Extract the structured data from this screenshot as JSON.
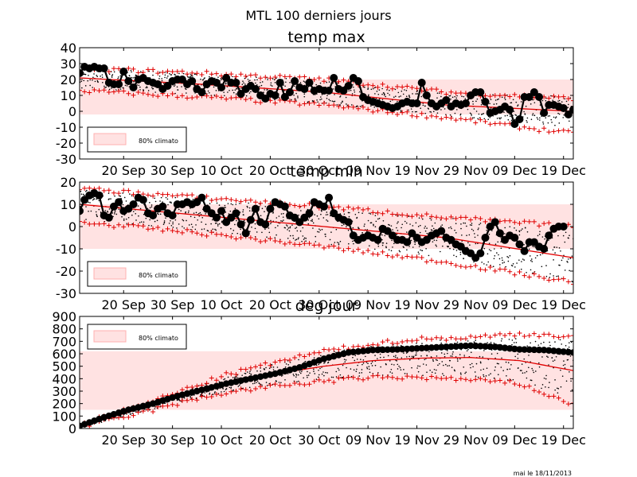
{
  "figure": {
    "title": "MTL 100 derniers jours",
    "footer": "mai le 18/11/2013"
  },
  "colors": {
    "band": "#ffe2e2",
    "band_edge": "#ffb0b0",
    "normal": "#e00000",
    "obs": "#000000",
    "members": "#000000"
  },
  "chart_data": [
    {
      "id": "tmax",
      "type": "line",
      "title": "temp max",
      "ylim": [
        -30,
        40
      ],
      "yticks": [
        -30,
        -20,
        -10,
        0,
        10,
        20,
        30,
        40
      ],
      "xticks": [
        "20 Sep",
        "30 Sep",
        "10 Oct",
        "20 Oct",
        "30 Oct",
        "09 Nov",
        "19 Nov",
        "29 Nov",
        "09 Dec",
        "19 Dec"
      ],
      "xtick_days": [
        9,
        19,
        29,
        39,
        49,
        59,
        69,
        79,
        89,
        99
      ],
      "xlim_days": [
        0,
        101
      ],
      "legend": {
        "label": "80% climato",
        "position": "lower left"
      },
      "band": [
        [
          0,
          -2,
          20
        ],
        [
          101,
          -2,
          20
        ]
      ],
      "normal": [
        [
          0,
          21
        ],
        [
          25,
          17
        ],
        [
          50,
          12
        ],
        [
          75,
          4
        ],
        [
          101,
          0
        ]
      ],
      "low": [
        [
          0,
          13
        ],
        [
          25,
          9
        ],
        [
          50,
          4
        ],
        [
          75,
          -4
        ],
        [
          101,
          -14
        ]
      ],
      "high": [
        [
          0,
          27
        ],
        [
          25,
          24
        ],
        [
          50,
          20
        ],
        [
          75,
          12
        ],
        [
          101,
          8
        ]
      ],
      "observed": [
        [
          0,
          24
        ],
        [
          1,
          28
        ],
        [
          2,
          27
        ],
        [
          3,
          28
        ],
        [
          4,
          27
        ],
        [
          5,
          27
        ],
        [
          6,
          18
        ],
        [
          7,
          17
        ],
        [
          8,
          17
        ],
        [
          9,
          25
        ],
        [
          10,
          19
        ],
        [
          11,
          15
        ],
        [
          12,
          20
        ],
        [
          13,
          21
        ],
        [
          14,
          19
        ],
        [
          15,
          18
        ],
        [
          16,
          17
        ],
        [
          17,
          14
        ],
        [
          18,
          16
        ],
        [
          19,
          19
        ],
        [
          20,
          20
        ],
        [
          21,
          20
        ],
        [
          22,
          17
        ],
        [
          23,
          19
        ],
        [
          24,
          14
        ],
        [
          25,
          12
        ],
        [
          26,
          17
        ],
        [
          27,
          19
        ],
        [
          28,
          18
        ],
        [
          29,
          15
        ],
        [
          30,
          21
        ],
        [
          31,
          18
        ],
        [
          32,
          18
        ],
        [
          33,
          11
        ],
        [
          34,
          14
        ],
        [
          35,
          16
        ],
        [
          36,
          14
        ],
        [
          37,
          10
        ],
        [
          38,
          8
        ],
        [
          39,
          11
        ],
        [
          40,
          10
        ],
        [
          41,
          18
        ],
        [
          42,
          9
        ],
        [
          43,
          12
        ],
        [
          44,
          19
        ],
        [
          45,
          15
        ],
        [
          46,
          14
        ],
        [
          47,
          18
        ],
        [
          48,
          13
        ],
        [
          49,
          14
        ],
        [
          50,
          13
        ],
        [
          51,
          13
        ],
        [
          52,
          21
        ],
        [
          53,
          14
        ],
        [
          54,
          13
        ],
        [
          55,
          16
        ],
        [
          56,
          21
        ],
        [
          57,
          19
        ],
        [
          58,
          9
        ],
        [
          59,
          7
        ],
        [
          60,
          6
        ],
        [
          61,
          5
        ],
        [
          62,
          4
        ],
        [
          63,
          3
        ],
        [
          64,
          2
        ],
        [
          65,
          3
        ],
        [
          66,
          5
        ],
        [
          67,
          6
        ],
        [
          68,
          5
        ],
        [
          69,
          5
        ],
        [
          70,
          18
        ],
        [
          71,
          10
        ],
        [
          72,
          5
        ],
        [
          73,
          3
        ],
        [
          74,
          5
        ],
        [
          75,
          7
        ],
        [
          76,
          3
        ],
        [
          77,
          5
        ],
        [
          78,
          4
        ],
        [
          79,
          5
        ],
        [
          80,
          10
        ],
        [
          81,
          12
        ],
        [
          82,
          12
        ],
        [
          83,
          6
        ],
        [
          84,
          -1
        ],
        [
          85,
          0
        ],
        [
          86,
          1
        ],
        [
          87,
          3
        ],
        [
          88,
          1
        ],
        [
          89,
          -8
        ],
        [
          90,
          -5
        ],
        [
          91,
          9
        ],
        [
          92,
          9
        ],
        [
          93,
          12
        ],
        [
          94,
          9
        ],
        [
          95,
          -1
        ],
        [
          96,
          4
        ],
        [
          97,
          4
        ],
        [
          98,
          3
        ],
        [
          99,
          2
        ],
        [
          100,
          -2
        ],
        [
          101,
          1
        ]
      ]
    },
    {
      "id": "tmin",
      "type": "line",
      "title": "temp min",
      "ylim": [
        -30,
        20
      ],
      "yticks": [
        -30,
        -20,
        -10,
        0,
        10,
        20
      ],
      "xticks": [
        "20 Sep",
        "30 Sep",
        "10 Oct",
        "20 Oct",
        "30 Oct",
        "09 Nov",
        "19 Nov",
        "29 Nov",
        "09 Dec",
        "19 Dec"
      ],
      "xtick_days": [
        9,
        19,
        29,
        39,
        49,
        59,
        69,
        79,
        89,
        99
      ],
      "xlim_days": [
        0,
        101
      ],
      "legend": {
        "label": "80% climato",
        "position": "lower left"
      },
      "band": [
        [
          0,
          -10,
          10
        ],
        [
          101,
          -10,
          10
        ]
      ],
      "normal": [
        [
          0,
          10
        ],
        [
          25,
          5
        ],
        [
          50,
          0
        ],
        [
          75,
          -5
        ],
        [
          101,
          -14
        ]
      ],
      "low": [
        [
          0,
          2
        ],
        [
          25,
          -3
        ],
        [
          50,
          -9
        ],
        [
          75,
          -16
        ],
        [
          101,
          -25
        ]
      ],
      "high": [
        [
          0,
          17
        ],
        [
          25,
          13
        ],
        [
          50,
          9
        ],
        [
          75,
          4
        ],
        [
          101,
          0
        ]
      ],
      "observed": [
        [
          0,
          7
        ],
        [
          1,
          12
        ],
        [
          2,
          14
        ],
        [
          3,
          15
        ],
        [
          4,
          14
        ],
        [
          5,
          5
        ],
        [
          6,
          4
        ],
        [
          7,
          9
        ],
        [
          8,
          11
        ],
        [
          9,
          7
        ],
        [
          10,
          8
        ],
        [
          11,
          10
        ],
        [
          12,
          13
        ],
        [
          13,
          12
        ],
        [
          14,
          6
        ],
        [
          15,
          5
        ],
        [
          16,
          8
        ],
        [
          17,
          9
        ],
        [
          18,
          6
        ],
        [
          19,
          5
        ],
        [
          20,
          10
        ],
        [
          21,
          10
        ],
        [
          22,
          11
        ],
        [
          23,
          10
        ],
        [
          24,
          11
        ],
        [
          25,
          13
        ],
        [
          26,
          8
        ],
        [
          27,
          6
        ],
        [
          28,
          4
        ],
        [
          29,
          7
        ],
        [
          30,
          2
        ],
        [
          31,
          4
        ],
        [
          32,
          6
        ],
        [
          33,
          1
        ],
        [
          34,
          -3
        ],
        [
          35,
          3
        ],
        [
          36,
          8
        ],
        [
          37,
          2
        ],
        [
          38,
          1
        ],
        [
          39,
          8
        ],
        [
          40,
          11
        ],
        [
          41,
          10
        ],
        [
          42,
          9
        ],
        [
          43,
          5
        ],
        [
          44,
          4
        ],
        [
          45,
          2
        ],
        [
          46,
          4
        ],
        [
          47,
          6
        ],
        [
          48,
          11
        ],
        [
          49,
          10
        ],
        [
          50,
          9
        ],
        [
          51,
          13
        ],
        [
          52,
          6
        ],
        [
          53,
          4
        ],
        [
          54,
          3
        ],
        [
          55,
          2
        ],
        [
          56,
          -4
        ],
        [
          57,
          -6
        ],
        [
          58,
          -5
        ],
        [
          59,
          -4
        ],
        [
          60,
          -5
        ],
        [
          61,
          -6
        ],
        [
          62,
          -1
        ],
        [
          63,
          -2
        ],
        [
          64,
          -4
        ],
        [
          65,
          -6
        ],
        [
          66,
          -6
        ],
        [
          67,
          -7
        ],
        [
          68,
          -3
        ],
        [
          69,
          -5
        ],
        [
          70,
          -7
        ],
        [
          71,
          -6
        ],
        [
          72,
          -4
        ],
        [
          73,
          -3
        ],
        [
          74,
          -2
        ],
        [
          75,
          -5
        ],
        [
          76,
          -6
        ],
        [
          77,
          -8
        ],
        [
          78,
          -9
        ],
        [
          79,
          -11
        ],
        [
          80,
          -12
        ],
        [
          81,
          -14
        ],
        [
          82,
          -12
        ],
        [
          83,
          -5
        ],
        [
          84,
          0
        ],
        [
          85,
          2
        ],
        [
          86,
          -3
        ],
        [
          87,
          -6
        ],
        [
          88,
          -4
        ],
        [
          89,
          -5
        ],
        [
          90,
          -8
        ],
        [
          91,
          -11
        ],
        [
          92,
          -7
        ],
        [
          93,
          -7
        ],
        [
          94,
          -9
        ],
        [
          95,
          -10
        ],
        [
          96,
          -4
        ],
        [
          97,
          -1
        ],
        [
          98,
          0
        ],
        [
          99,
          0
        ]
      ]
    },
    {
      "id": "degjour",
      "type": "line",
      "title": "deg jour",
      "ylim": [
        0,
        900
      ],
      "yticks": [
        0,
        100,
        200,
        300,
        400,
        500,
        600,
        700,
        800,
        900
      ],
      "xticks": [
        "20 Sep",
        "30 Sep",
        "10 Oct",
        "20 Oct",
        "30 Oct",
        "09 Nov",
        "19 Nov",
        "29 Nov",
        "09 Dec",
        "19 Dec"
      ],
      "xtick_days": [
        9,
        19,
        29,
        39,
        49,
        59,
        69,
        79,
        89,
        99
      ],
      "xlim_days": [
        0,
        101
      ],
      "legend": {
        "label": "80% climato",
        "position": "upper left"
      },
      "band": [
        [
          0,
          150,
          620
        ],
        [
          101,
          150,
          620
        ]
      ],
      "normal": [
        [
          0,
          20
        ],
        [
          10,
          130
        ],
        [
          20,
          250
        ],
        [
          30,
          360
        ],
        [
          40,
          440
        ],
        [
          50,
          500
        ],
        [
          60,
          545
        ],
        [
          70,
          565
        ],
        [
          80,
          570
        ],
        [
          90,
          545
        ],
        [
          101,
          465
        ]
      ],
      "low": [
        [
          0,
          10
        ],
        [
          10,
          100
        ],
        [
          20,
          200
        ],
        [
          30,
          290
        ],
        [
          40,
          340
        ],
        [
          50,
          380
        ],
        [
          60,
          410
        ],
        [
          70,
          410
        ],
        [
          80,
          390
        ],
        [
          90,
          360
        ],
        [
          101,
          190
        ]
      ],
      "high": [
        [
          0,
          30
        ],
        [
          10,
          150
        ],
        [
          20,
          290
        ],
        [
          30,
          430
        ],
        [
          40,
          530
        ],
        [
          50,
          620
        ],
        [
          60,
          680
        ],
        [
          70,
          720
        ],
        [
          80,
          730
        ],
        [
          90,
          760
        ],
        [
          101,
          740
        ]
      ],
      "observed": [
        [
          0,
          20
        ],
        [
          5,
          90
        ],
        [
          10,
          150
        ],
        [
          15,
          200
        ],
        [
          20,
          260
        ],
        [
          25,
          310
        ],
        [
          30,
          360
        ],
        [
          35,
          400
        ],
        [
          40,
          440
        ],
        [
          45,
          490
        ],
        [
          50,
          560
        ],
        [
          55,
          610
        ],
        [
          60,
          630
        ],
        [
          65,
          635
        ],
        [
          70,
          645
        ],
        [
          75,
          655
        ],
        [
          80,
          665
        ],
        [
          85,
          655
        ],
        [
          90,
          635
        ],
        [
          95,
          630
        ],
        [
          101,
          610
        ]
      ]
    }
  ]
}
